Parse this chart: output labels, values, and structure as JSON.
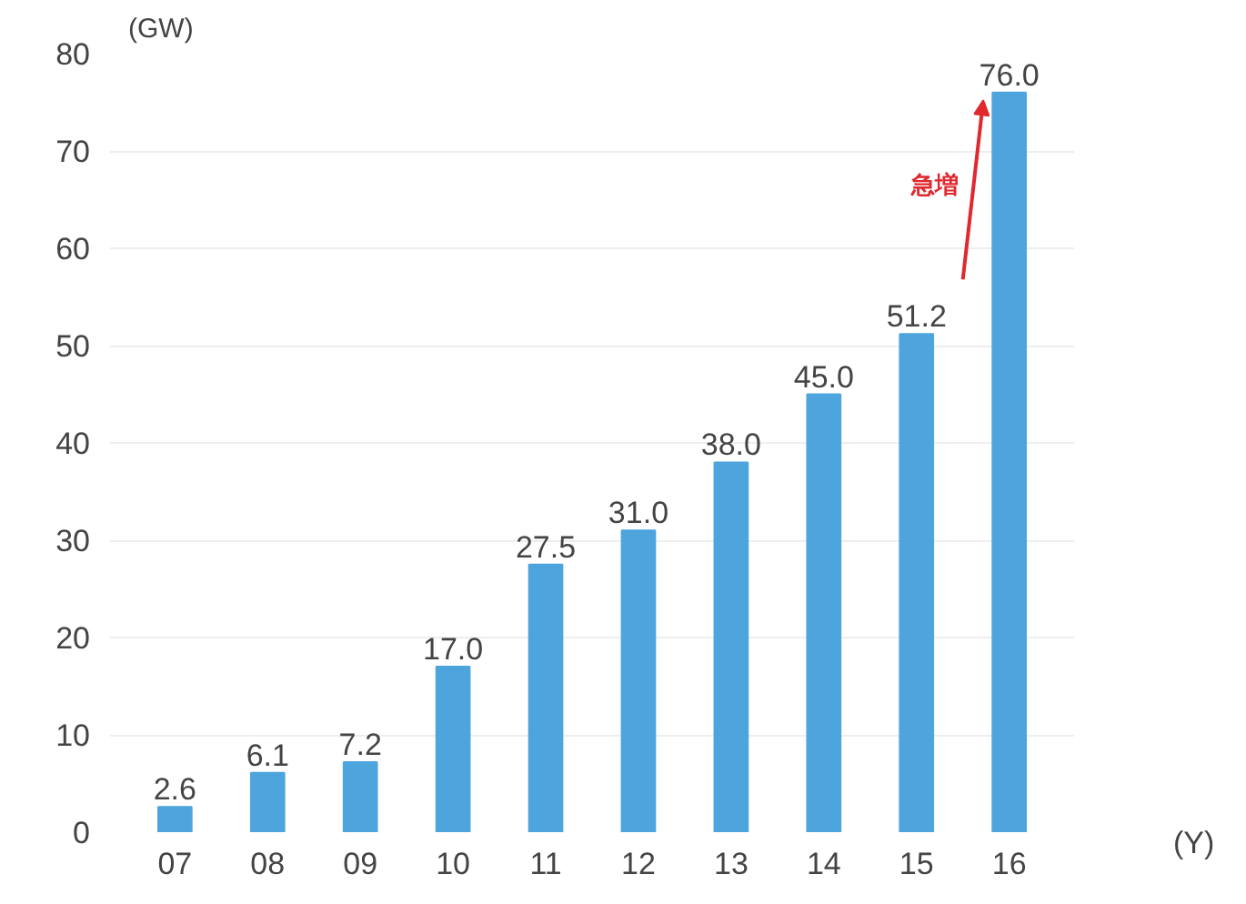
{
  "chart_data": {
    "type": "bar",
    "ylabel": "(GW)",
    "xlabel": "(Y)",
    "categories": [
      "07",
      "08",
      "09",
      "10",
      "11",
      "12",
      "13",
      "14",
      "15",
      "16"
    ],
    "values": [
      2.6,
      6.1,
      7.2,
      17.0,
      27.5,
      31.0,
      38.0,
      45.0,
      51.2,
      76.0
    ],
    "value_labels": [
      "2.6",
      "6.1",
      "7.2",
      "17.0",
      "27.5",
      "31.0",
      "38.0",
      "45.0",
      "51.2",
      "76.0"
    ],
    "color": "#4ea5dd",
    "ylim": [
      0,
      80
    ],
    "yticks": [
      0,
      10,
      20,
      30,
      40,
      50,
      60,
      70,
      80
    ],
    "grid": "y",
    "annotations": [
      "急増"
    ]
  }
}
